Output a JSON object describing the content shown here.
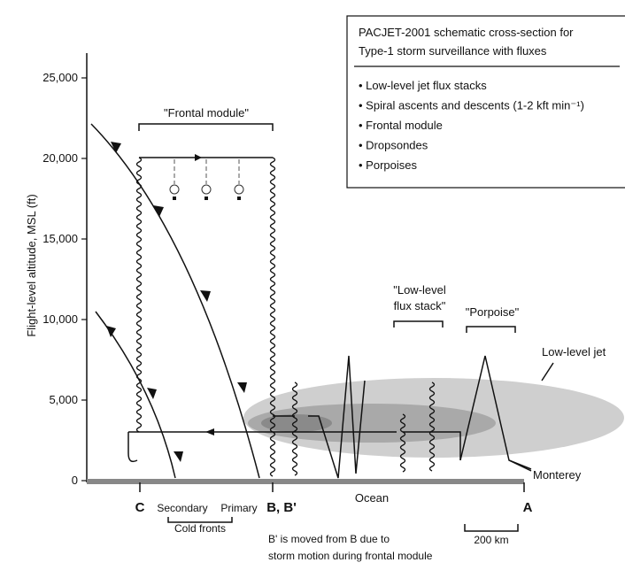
{
  "legend": {
    "title": [
      "PACJET-2001 schematic cross-section for",
      "Type-1 storm surveillance with fluxes"
    ],
    "items": [
      "Low-level jet flux stacks",
      "Spiral ascents and descents (1-2 kft min⁻¹)",
      "Frontal module",
      "Dropsondes",
      "Porpoises"
    ]
  },
  "y_axis": {
    "label": "Flight-level altitude, MSL (ft)",
    "ticks": [
      "0",
      "5,000",
      "10,000",
      "15,000",
      "20,000",
      "25,000"
    ]
  },
  "annotations": {
    "frontal_module": "\"Frontal module\"",
    "flux_stack": [
      "\"Low-level",
      "flux stack\""
    ],
    "porpoise": "\"Porpoise\"",
    "low_level_jet": "Low-level jet",
    "monterey": "Monterey",
    "ocean": "Ocean"
  },
  "points": {
    "c": "C",
    "secondary": "Secondary",
    "primary": "Primary",
    "b": "B, B'",
    "a": "A",
    "cold_fronts": "Cold fronts"
  },
  "scale": "200 km",
  "footnote": [
    "B' is moved from B due to",
    "storm motion during frontal module"
  ]
}
